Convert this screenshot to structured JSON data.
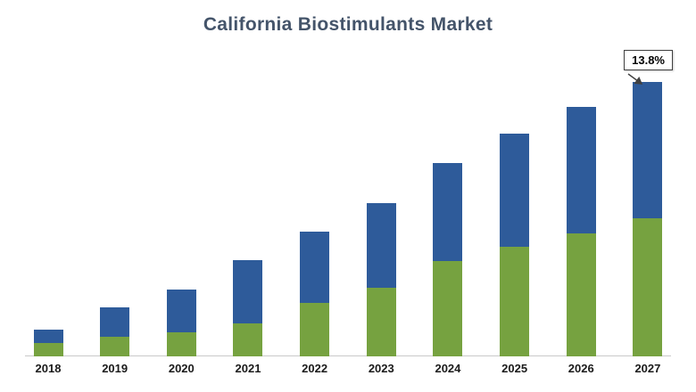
{
  "title": "California Biostimulants Market",
  "chart_data": {
    "type": "bar",
    "stacked": true,
    "title": "California Biostimulants Market",
    "categories": [
      "2018",
      "2019",
      "2020",
      "2021",
      "2022",
      "2023",
      "2024",
      "2025",
      "2026",
      "2027"
    ],
    "series": [
      {
        "name": "bottom-segment-green",
        "color": "#76a240",
        "values": [
          15,
          22,
          27,
          37,
          60,
          77,
          107,
          123,
          138,
          155
        ]
      },
      {
        "name": "top-segment-blue",
        "color": "#2e5b9a",
        "values": [
          15,
          33,
          48,
          71,
          80,
          95,
          110,
          127,
          142,
          153
        ]
      }
    ],
    "value_scale": "relative-units (no y-axis shown)",
    "ylim": [
      0,
      330
    ],
    "grid": false,
    "legend": false,
    "annotation": {
      "text": "13.8%",
      "target_category": "2027"
    }
  },
  "colors": {
    "title": "#44546a",
    "green": "#76a240",
    "blue": "#2e5b9a",
    "axis": "#c9c9c9"
  }
}
